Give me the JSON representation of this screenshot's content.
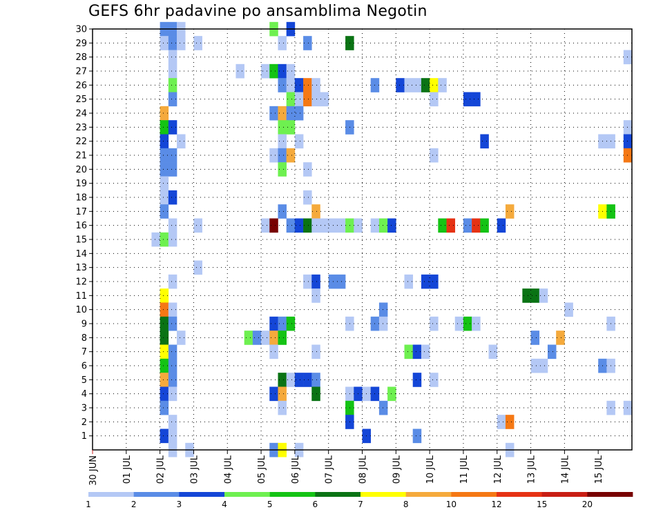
{
  "chart_data": {
    "type": "heatmap",
    "title": "GEFS 6hr padavine po ansamblima Negotin",
    "xlabel": "",
    "ylabel": "",
    "x_tick_labels": [
      "30 JUN",
      "01 JUL",
      "02 JUL",
      "03 JUL",
      "04 JUL",
      "05 JUL",
      "06 JUL",
      "07 JUL",
      "08 JUL",
      "09 JUL",
      "10 JUL",
      "11 JUL",
      "12 JUL",
      "13 JUL",
      "14 JUL",
      "15 JUL"
    ],
    "y_tick_labels": [
      "1",
      "2",
      "3",
      "4",
      "5",
      "6",
      "7",
      "8",
      "9",
      "10",
      "11",
      "12",
      "13",
      "14",
      "15",
      "16",
      "17",
      "18",
      "19",
      "20",
      "21",
      "22",
      "23",
      "24",
      "25",
      "26",
      "27",
      "28",
      "29",
      "30"
    ],
    "y_range": [
      0,
      30
    ],
    "x_steps": 64,
    "step_hours": 6,
    "grid": true,
    "legend_position": "bottom",
    "colorbar": {
      "labels": [
        "1",
        "2",
        "3",
        "4",
        "5",
        "6",
        "7",
        "8",
        "10",
        "12",
        "15",
        "20"
      ],
      "colors": [
        "#b4c8f5",
        "#5a8ce6",
        "#1446d7",
        "#6ef050",
        "#14c314",
        "#0a7314",
        "#ffff00",
        "#f5aa3c",
        "#f57814",
        "#e63214",
        "#c81e14",
        "#780000"
      ]
    },
    "cells": [
      {
        "m": 30,
        "t": 8,
        "c": 2
      },
      {
        "m": 30,
        "t": 9,
        "c": 2
      },
      {
        "m": 30,
        "t": 10,
        "c": 1
      },
      {
        "m": 30,
        "t": 21,
        "c": 4
      },
      {
        "m": 30,
        "t": 23,
        "c": 3
      },
      {
        "m": 29,
        "t": 8,
        "c": 1
      },
      {
        "m": 29,
        "t": 9,
        "c": 2
      },
      {
        "m": 29,
        "t": 10,
        "c": 1
      },
      {
        "m": 29,
        "t": 12,
        "c": 1
      },
      {
        "m": 29,
        "t": 22,
        "c": 1
      },
      {
        "m": 29,
        "t": 25,
        "c": 2
      },
      {
        "m": 29,
        "t": 30,
        "c": 6
      },
      {
        "m": 28,
        "t": 9,
        "c": 1
      },
      {
        "m": 28,
        "t": 63,
        "c": 1
      },
      {
        "m": 27,
        "t": 9,
        "c": 1
      },
      {
        "m": 27,
        "t": 17,
        "c": 1
      },
      {
        "m": 27,
        "t": 20,
        "c": 1
      },
      {
        "m": 27,
        "t": 21,
        "c": 5
      },
      {
        "m": 27,
        "t": 22,
        "c": 3
      },
      {
        "m": 27,
        "t": 23,
        "c": 1
      },
      {
        "m": 26,
        "t": 9,
        "c": 4
      },
      {
        "m": 26,
        "t": 22,
        "c": 2
      },
      {
        "m": 26,
        "t": 23,
        "c": 1
      },
      {
        "m": 26,
        "t": 24,
        "c": 3
      },
      {
        "m": 26,
        "t": 25,
        "c": 9
      },
      {
        "m": 26,
        "t": 26,
        "c": 1
      },
      {
        "m": 26,
        "t": 33,
        "c": 2
      },
      {
        "m": 26,
        "t": 36,
        "c": 3
      },
      {
        "m": 26,
        "t": 37,
        "c": 1
      },
      {
        "m": 26,
        "t": 38,
        "c": 1
      },
      {
        "m": 26,
        "t": 39,
        "c": 6
      },
      {
        "m": 26,
        "t": 40,
        "c": 7
      },
      {
        "m": 26,
        "t": 41,
        "c": 1
      },
      {
        "m": 25,
        "t": 9,
        "c": 2
      },
      {
        "m": 25,
        "t": 23,
        "c": 4
      },
      {
        "m": 25,
        "t": 24,
        "c": 1
      },
      {
        "m": 25,
        "t": 25,
        "c": 9
      },
      {
        "m": 25,
        "t": 26,
        "c": 1
      },
      {
        "m": 25,
        "t": 27,
        "c": 1
      },
      {
        "m": 25,
        "t": 40,
        "c": 1
      },
      {
        "m": 25,
        "t": 44,
        "c": 3
      },
      {
        "m": 25,
        "t": 45,
        "c": 3
      },
      {
        "m": 24,
        "t": 8,
        "c": 8
      },
      {
        "m": 24,
        "t": 21,
        "c": 2
      },
      {
        "m": 24,
        "t": 22,
        "c": 8
      },
      {
        "m": 24,
        "t": 23,
        "c": 2
      },
      {
        "m": 24,
        "t": 24,
        "c": 2
      },
      {
        "m": 23,
        "t": 8,
        "c": 5
      },
      {
        "m": 23,
        "t": 9,
        "c": 3
      },
      {
        "m": 23,
        "t": 22,
        "c": 4
      },
      {
        "m": 23,
        "t": 23,
        "c": 4
      },
      {
        "m": 23,
        "t": 30,
        "c": 2
      },
      {
        "m": 23,
        "t": 63,
        "c": 1
      },
      {
        "m": 22,
        "t": 8,
        "c": 3
      },
      {
        "m": 22,
        "t": 10,
        "c": 1
      },
      {
        "m": 22,
        "t": 22,
        "c": 1
      },
      {
        "m": 22,
        "t": 24,
        "c": 1
      },
      {
        "m": 22,
        "t": 46,
        "c": 3
      },
      {
        "m": 22,
        "t": 60,
        "c": 1
      },
      {
        "m": 22,
        "t": 61,
        "c": 1
      },
      {
        "m": 22,
        "t": 63,
        "c": 3
      },
      {
        "m": 21,
        "t": 8,
        "c": 2
      },
      {
        "m": 21,
        "t": 9,
        "c": 2
      },
      {
        "m": 21,
        "t": 21,
        "c": 1
      },
      {
        "m": 21,
        "t": 22,
        "c": 2
      },
      {
        "m": 21,
        "t": 23,
        "c": 8
      },
      {
        "m": 21,
        "t": 40,
        "c": 1
      },
      {
        "m": 21,
        "t": 63,
        "c": 9
      },
      {
        "m": 20,
        "t": 8,
        "c": 2
      },
      {
        "m": 20,
        "t": 9,
        "c": 2
      },
      {
        "m": 20,
        "t": 22,
        "c": 4
      },
      {
        "m": 20,
        "t": 25,
        "c": 1
      },
      {
        "m": 19,
        "t": 8,
        "c": 1
      },
      {
        "m": 18,
        "t": 8,
        "c": 1
      },
      {
        "m": 18,
        "t": 9,
        "c": 3
      },
      {
        "m": 18,
        "t": 25,
        "c": 1
      },
      {
        "m": 17,
        "t": 8,
        "c": 2
      },
      {
        "m": 17,
        "t": 22,
        "c": 2
      },
      {
        "m": 17,
        "t": 26,
        "c": 8
      },
      {
        "m": 17,
        "t": 49,
        "c": 8
      },
      {
        "m": 17,
        "t": 60,
        "c": 7
      },
      {
        "m": 17,
        "t": 61,
        "c": 5
      },
      {
        "m": 16,
        "t": 9,
        "c": 1
      },
      {
        "m": 16,
        "t": 12,
        "c": 1
      },
      {
        "m": 16,
        "t": 20,
        "c": 1
      },
      {
        "m": 16,
        "t": 21,
        "c": 12
      },
      {
        "m": 16,
        "t": 23,
        "c": 2
      },
      {
        "m": 16,
        "t": 24,
        "c": 3
      },
      {
        "m": 16,
        "t": 25,
        "c": 6
      },
      {
        "m": 16,
        "t": 26,
        "c": 1
      },
      {
        "m": 16,
        "t": 27,
        "c": 1
      },
      {
        "m": 16,
        "t": 28,
        "c": 1
      },
      {
        "m": 16,
        "t": 29,
        "c": 1
      },
      {
        "m": 16,
        "t": 30,
        "c": 4
      },
      {
        "m": 16,
        "t": 31,
        "c": 1
      },
      {
        "m": 16,
        "t": 33,
        "c": 1
      },
      {
        "m": 16,
        "t": 34,
        "c": 4
      },
      {
        "m": 16,
        "t": 35,
        "c": 3
      },
      {
        "m": 16,
        "t": 41,
        "c": 5
      },
      {
        "m": 16,
        "t": 42,
        "c": 10
      },
      {
        "m": 16,
        "t": 44,
        "c": 2
      },
      {
        "m": 16,
        "t": 45,
        "c": 10
      },
      {
        "m": 16,
        "t": 46,
        "c": 5
      },
      {
        "m": 16,
        "t": 48,
        "c": 3
      },
      {
        "m": 15,
        "t": 7,
        "c": 1
      },
      {
        "m": 15,
        "t": 8,
        "c": 4
      },
      {
        "m": 15,
        "t": 9,
        "c": 1
      },
      {
        "m": 13,
        "t": 12,
        "c": 1
      },
      {
        "m": 12,
        "t": 9,
        "c": 1
      },
      {
        "m": 12,
        "t": 25,
        "c": 1
      },
      {
        "m": 12,
        "t": 26,
        "c": 3
      },
      {
        "m": 12,
        "t": 28,
        "c": 2
      },
      {
        "m": 12,
        "t": 29,
        "c": 2
      },
      {
        "m": 12,
        "t": 37,
        "c": 1
      },
      {
        "m": 12,
        "t": 39,
        "c": 3
      },
      {
        "m": 12,
        "t": 40,
        "c": 3
      },
      {
        "m": 11,
        "t": 8,
        "c": 7
      },
      {
        "m": 11,
        "t": 26,
        "c": 1
      },
      {
        "m": 11,
        "t": 51,
        "c": 6
      },
      {
        "m": 11,
        "t": 52,
        "c": 6
      },
      {
        "m": 11,
        "t": 53,
        "c": 1
      },
      {
        "m": 10,
        "t": 8,
        "c": 9
      },
      {
        "m": 10,
        "t": 9,
        "c": 1
      },
      {
        "m": 10,
        "t": 34,
        "c": 2
      },
      {
        "m": 10,
        "t": 56,
        "c": 1
      },
      {
        "m": 9,
        "t": 8,
        "c": 6
      },
      {
        "m": 9,
        "t": 9,
        "c": 2
      },
      {
        "m": 9,
        "t": 21,
        "c": 3
      },
      {
        "m": 9,
        "t": 22,
        "c": 2
      },
      {
        "m": 9,
        "t": 23,
        "c": 5
      },
      {
        "m": 9,
        "t": 30,
        "c": 1
      },
      {
        "m": 9,
        "t": 33,
        "c": 2
      },
      {
        "m": 9,
        "t": 34,
        "c": 1
      },
      {
        "m": 9,
        "t": 40,
        "c": 1
      },
      {
        "m": 9,
        "t": 43,
        "c": 1
      },
      {
        "m": 9,
        "t": 44,
        "c": 5
      },
      {
        "m": 9,
        "t": 45,
        "c": 1
      },
      {
        "m": 9,
        "t": 61,
        "c": 1
      },
      {
        "m": 8,
        "t": 8,
        "c": 6
      },
      {
        "m": 8,
        "t": 10,
        "c": 1
      },
      {
        "m": 8,
        "t": 18,
        "c": 4
      },
      {
        "m": 8,
        "t": 19,
        "c": 2
      },
      {
        "m": 8,
        "t": 20,
        "c": 1
      },
      {
        "m": 8,
        "t": 21,
        "c": 8
      },
      {
        "m": 8,
        "t": 22,
        "c": 5
      },
      {
        "m": 8,
        "t": 52,
        "c": 2
      },
      {
        "m": 8,
        "t": 55,
        "c": 8
      },
      {
        "m": 7,
        "t": 8,
        "c": 7
      },
      {
        "m": 7,
        "t": 9,
        "c": 2
      },
      {
        "m": 7,
        "t": 21,
        "c": 1
      },
      {
        "m": 7,
        "t": 26,
        "c": 1
      },
      {
        "m": 7,
        "t": 37,
        "c": 4
      },
      {
        "m": 7,
        "t": 38,
        "c": 3
      },
      {
        "m": 7,
        "t": 39,
        "c": 1
      },
      {
        "m": 7,
        "t": 47,
        "c": 1
      },
      {
        "m": 7,
        "t": 54,
        "c": 2
      },
      {
        "m": 6,
        "t": 8,
        "c": 5
      },
      {
        "m": 6,
        "t": 9,
        "c": 2
      },
      {
        "m": 6,
        "t": 52,
        "c": 1
      },
      {
        "m": 6,
        "t": 53,
        "c": 1
      },
      {
        "m": 6,
        "t": 60,
        "c": 2
      },
      {
        "m": 6,
        "t": 61,
        "c": 1
      },
      {
        "m": 5,
        "t": 8,
        "c": 8
      },
      {
        "m": 5,
        "t": 9,
        "c": 2
      },
      {
        "m": 5,
        "t": 22,
        "c": 6
      },
      {
        "m": 5,
        "t": 23,
        "c": 1
      },
      {
        "m": 5,
        "t": 24,
        "c": 3
      },
      {
        "m": 5,
        "t": 25,
        "c": 3
      },
      {
        "m": 5,
        "t": 26,
        "c": 2
      },
      {
        "m": 5,
        "t": 38,
        "c": 3
      },
      {
        "m": 5,
        "t": 40,
        "c": 1
      },
      {
        "m": 4,
        "t": 8,
        "c": 3
      },
      {
        "m": 4,
        "t": 9,
        "c": 1
      },
      {
        "m": 4,
        "t": 21,
        "c": 3
      },
      {
        "m": 4,
        "t": 22,
        "c": 8
      },
      {
        "m": 4,
        "t": 26,
        "c": 6
      },
      {
        "m": 4,
        "t": 30,
        "c": 1
      },
      {
        "m": 4,
        "t": 31,
        "c": 3
      },
      {
        "m": 4,
        "t": 32,
        "c": 1
      },
      {
        "m": 4,
        "t": 33,
        "c": 3
      },
      {
        "m": 4,
        "t": 35,
        "c": 4
      },
      {
        "m": 3,
        "t": 8,
        "c": 2
      },
      {
        "m": 3,
        "t": 22,
        "c": 1
      },
      {
        "m": 3,
        "t": 30,
        "c": 5
      },
      {
        "m": 3,
        "t": 34,
        "c": 2
      },
      {
        "m": 3,
        "t": 61,
        "c": 1
      },
      {
        "m": 3,
        "t": 63,
        "c": 1
      },
      {
        "m": 2,
        "t": 9,
        "c": 1
      },
      {
        "m": 2,
        "t": 30,
        "c": 3
      },
      {
        "m": 2,
        "t": 48,
        "c": 1
      },
      {
        "m": 2,
        "t": 49,
        "c": 9
      },
      {
        "m": 1,
        "t": 8,
        "c": 3
      },
      {
        "m": 1,
        "t": 9,
        "c": 1
      },
      {
        "m": 1,
        "t": 32,
        "c": 3
      },
      {
        "m": 1,
        "t": 38,
        "c": 2
      },
      {
        "m": 0,
        "t": 9,
        "c": 1
      },
      {
        "m": 0,
        "t": 11,
        "c": 1
      },
      {
        "m": 0,
        "t": 21,
        "c": 2
      },
      {
        "m": 0,
        "t": 22,
        "c": 7
      },
      {
        "m": 0,
        "t": 24,
        "c": 1
      },
      {
        "m": 0,
        "t": 49,
        "c": 1
      }
    ]
  }
}
